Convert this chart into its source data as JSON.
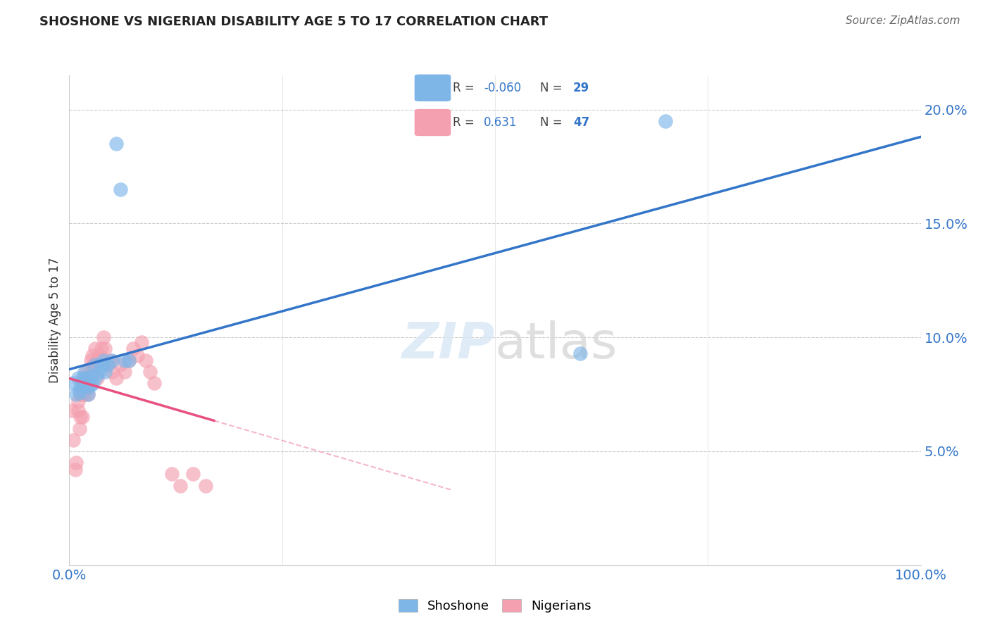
{
  "title": "SHOSHONE VS NIGERIAN DISABILITY AGE 5 TO 17 CORRELATION CHART",
  "source": "Source: ZipAtlas.com",
  "ylabel": "Disability Age 5 to 17",
  "xlim": [
    0.0,
    1.0
  ],
  "ylim": [
    0.0,
    0.215
  ],
  "yticks": [
    0.05,
    0.1,
    0.15,
    0.2
  ],
  "ytick_labels": [
    "5.0%",
    "10.0%",
    "15.0%",
    "20.0%"
  ],
  "shoshone_R": "-0.060",
  "shoshone_N": "29",
  "nigerian_R": "0.631",
  "nigerian_N": "47",
  "shoshone_color": "#7EB6E8",
  "nigerian_color": "#F4A0B0",
  "shoshone_line_color": "#3375C8",
  "nigerian_line_color": "#E85080",
  "nigerian_dashed_color": "#F4B8C8",
  "grid_color": "#CCCCCC",
  "shoshone_x": [
    0.005,
    0.008,
    0.01,
    0.012,
    0.013,
    0.015,
    0.015,
    0.018,
    0.018,
    0.02,
    0.022,
    0.022,
    0.025,
    0.025,
    0.028,
    0.03,
    0.032,
    0.035,
    0.038,
    0.04,
    0.042,
    0.045,
    0.05,
    0.055,
    0.06,
    0.065,
    0.07,
    0.6,
    0.7
  ],
  "shoshone_y": [
    0.08,
    0.075,
    0.082,
    0.076,
    0.078,
    0.082,
    0.08,
    0.085,
    0.079,
    0.082,
    0.078,
    0.075,
    0.083,
    0.079,
    0.08,
    0.088,
    0.083,
    0.085,
    0.088,
    0.09,
    0.085,
    0.088,
    0.09,
    0.185,
    0.165,
    0.09,
    0.09,
    0.093,
    0.195
  ],
  "nigerian_x": [
    0.003,
    0.005,
    0.007,
    0.008,
    0.01,
    0.01,
    0.012,
    0.013,
    0.013,
    0.015,
    0.015,
    0.015,
    0.017,
    0.018,
    0.018,
    0.02,
    0.02,
    0.022,
    0.022,
    0.025,
    0.025,
    0.027,
    0.028,
    0.03,
    0.032,
    0.033,
    0.035,
    0.038,
    0.04,
    0.042,
    0.045,
    0.048,
    0.05,
    0.055,
    0.06,
    0.065,
    0.07,
    0.075,
    0.08,
    0.085,
    0.09,
    0.095,
    0.1,
    0.12,
    0.13,
    0.145,
    0.16
  ],
  "nigerian_y": [
    0.068,
    0.055,
    0.042,
    0.045,
    0.072,
    0.068,
    0.06,
    0.075,
    0.065,
    0.08,
    0.075,
    0.065,
    0.078,
    0.082,
    0.075,
    0.085,
    0.078,
    0.08,
    0.075,
    0.09,
    0.085,
    0.092,
    0.088,
    0.095,
    0.09,
    0.082,
    0.092,
    0.095,
    0.1,
    0.095,
    0.088,
    0.09,
    0.085,
    0.082,
    0.088,
    0.085,
    0.09,
    0.095,
    0.092,
    0.098,
    0.09,
    0.085,
    0.08,
    0.04,
    0.035,
    0.04,
    0.035
  ]
}
